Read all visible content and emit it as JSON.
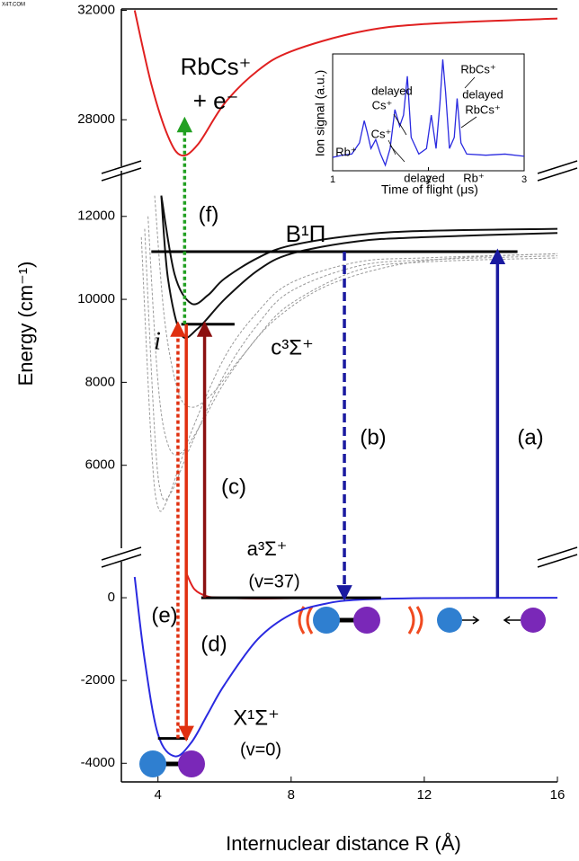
{
  "watermark": "X4T.COM",
  "chart_data": [
    {
      "type": "line",
      "y_label": "Energy (cm⁻¹)",
      "x_label": "Internuclear distance R (Å)",
      "xlim": [
        2.9,
        16
      ],
      "xticks": [
        4,
        8,
        12,
        16
      ],
      "panels": [
        {
          "ylim": [
            26300,
            32050
          ],
          "yticks": [
            28000,
            32000
          ]
        },
        {
          "ylim": [
            4000,
            13100
          ],
          "yticks": [
            6000,
            8000,
            10000,
            12000
          ]
        },
        {
          "ylim": [
            -4450,
            870
          ],
          "yticks": [
            -4000,
            -2000,
            0
          ]
        }
      ],
      "series": [
        {
          "color": "#2a2ae0",
          "x": [
            3.3,
            3.6,
            4,
            4.5,
            5,
            5.5,
            6,
            7,
            8,
            9,
            10,
            12,
            16
          ],
          "values": [
            500,
            -1500,
            -3300,
            -3830,
            -3500,
            -2800,
            -2100,
            -1000,
            -400,
            -150,
            -50,
            -10,
            0
          ]
        },
        {
          "color": "#e02020",
          "x": [
            4.85,
            5.1,
            5.5,
            6,
            7,
            8
          ],
          "values": [
            600,
            200,
            30,
            0,
            -20,
            -10
          ]
        },
        {
          "color": "#e02020",
          "x": [
            3.3,
            3.8,
            4.3,
            4.7,
            5.2,
            6,
            7,
            8,
            10,
            12,
            16
          ],
          "values": [
            32000,
            29300,
            27400,
            26700,
            27100,
            28600,
            29800,
            30500,
            31200,
            31500,
            31700
          ]
        },
        {
          "color": "#999999",
          "dash": true,
          "x": [
            3.5,
            3.8,
            4,
            4.3,
            5,
            6,
            7,
            8,
            10,
            12,
            16
          ],
          "values": [
            11500,
            6500,
            5000,
            5200,
            6800,
            8600,
            9700,
            10400,
            10900,
            11000,
            11100
          ]
        },
        {
          "color": "#999999",
          "dash": true,
          "x": [
            3.6,
            3.9,
            4.1,
            4.4,
            5,
            6,
            7,
            8,
            10,
            12,
            16
          ],
          "values": [
            11700,
            6800,
            5300,
            5350,
            6500,
            8200,
            9400,
            10200,
            10800,
            10950,
            11050
          ]
        },
        {
          "color": "#999999",
          "dash": true,
          "x": [
            3.7,
            4,
            4.3,
            4.7,
            5.3,
            6,
            7,
            8,
            10,
            12,
            16
          ],
          "values": [
            12000,
            8000,
            6500,
            6300,
            7000,
            8000,
            9100,
            9900,
            10700,
            10900,
            11000
          ]
        },
        {
          "color": "#999999",
          "dash": true,
          "x": [
            3.9,
            4.2,
            4.6,
            5,
            5.6,
            6.5,
            7.5,
            9,
            11,
            13,
            16
          ],
          "values": [
            12500,
            9500,
            7800,
            7400,
            7700,
            8600,
            9500,
            10300,
            10800,
            11000,
            11100
          ]
        },
        {
          "color": "#111111",
          "x": [
            4.1,
            4.3,
            4.7,
            5.2,
            6,
            7,
            8,
            10,
            12,
            16
          ],
          "values": [
            12500,
            10500,
            9150,
            9300,
            10000,
            10700,
            11100,
            11400,
            11500,
            11600
          ]
        },
        {
          "color": "#111111",
          "x": [
            4.1,
            4.5,
            5,
            5.5,
            6,
            7,
            8,
            10,
            12,
            16
          ],
          "values": [
            12500,
            10600,
            9900,
            10100,
            10500,
            11000,
            11300,
            11550,
            11650,
            11700
          ]
        }
      ],
      "levels": [
        {
          "x": [
            3.8,
            14.8
          ],
          "y": 11150
        },
        {
          "x": [
            4.7,
            6.3
          ],
          "y": 9400
        },
        {
          "x": [
            5.3,
            10.7
          ],
          "y": 0
        },
        {
          "x": [
            4,
            4.9
          ],
          "y": -3400
        }
      ],
      "transitions": [
        {
          "label": "(a)",
          "x": 14.2,
          "y": [
            0,
            11150
          ],
          "color": "#1a1aa0",
          "style": "solid"
        },
        {
          "label": "(b)",
          "x": 9.6,
          "y": [
            11150,
            0
          ],
          "color": "#1a1aa0",
          "style": "dashed"
        },
        {
          "label": "(c)",
          "x": 5.4,
          "y": [
            0,
            9400
          ],
          "color": "#8b1010",
          "style": "solid"
        },
        {
          "label": "(d)",
          "x": 4.85,
          "y": [
            9400,
            -3400
          ],
          "color": "#e03010",
          "style": "solid"
        },
        {
          "label": "(e)",
          "x": 4.6,
          "y": [
            -3400,
            9400
          ],
          "color": "#e03010",
          "style": "dotted"
        },
        {
          "label": "(f)",
          "x": 4.8,
          "y": [
            9400,
            28000
          ],
          "color": "#22a022",
          "style": "dotted"
        }
      ],
      "annotations": [
        "RbCs⁺",
        "+ e⁻",
        "B¹Π",
        "c³Σ⁺",
        "i",
        "a³Σ⁺",
        "(v=37)",
        "X¹Σ⁺",
        "(v=0)"
      ]
    },
    {
      "type": "line",
      "y_label": "Ion signal (a.u.)",
      "x_label": "Time of flight (μs)",
      "xlim": [
        1,
        3
      ],
      "xticks": [
        1,
        2,
        3
      ],
      "ylim": [
        0,
        1.05
      ],
      "series": [
        {
          "color": "#2a2ae0",
          "x": [
            1,
            1.1,
            1.2,
            1.28,
            1.33,
            1.36,
            1.4,
            1.45,
            1.5,
            1.55,
            1.6,
            1.65,
            1.7,
            1.74,
            1.78,
            1.82,
            1.9,
            1.98,
            2.03,
            2.08,
            2.12,
            2.15,
            2.18,
            2.22,
            2.27,
            2.3,
            2.34,
            2.4,
            2.6,
            2.8,
            3
          ],
          "values": [
            0.12,
            0.14,
            0.15,
            0.25,
            0.45,
            0.35,
            0.2,
            0.28,
            0.15,
            0.05,
            0.2,
            0.55,
            0.4,
            0.5,
            0.85,
            0.3,
            0.15,
            0.2,
            0.5,
            0.2,
            0.6,
            1.0,
            0.7,
            0.2,
            0.3,
            0.65,
            0.25,
            0.15,
            0.14,
            0.15,
            0.13
          ]
        }
      ],
      "annotations": [
        "Rb⁺",
        "Cs⁺",
        "delayed",
        "Cs⁺",
        "RbCs⁺",
        "delayed",
        "RbCs⁺",
        "delayed",
        "Rb⁺"
      ]
    }
  ]
}
